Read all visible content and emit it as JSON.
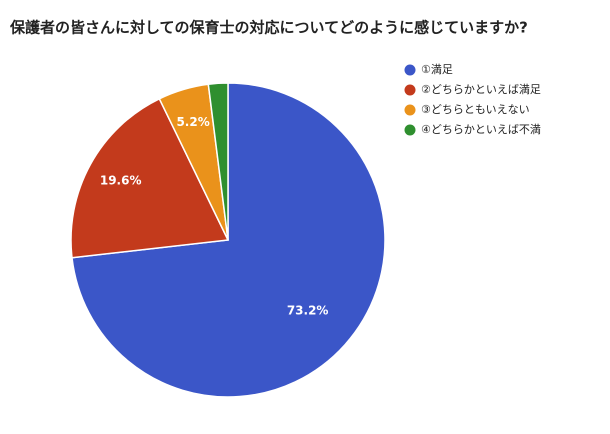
{
  "chart_data": {
    "type": "pie",
    "title": "保護者の皆さんに対しての保育士の対応についてどのように感じていますか?",
    "categories": [
      "①満足",
      "②どちらかといえば満足",
      "③どちらともいえない",
      "④どちらかといえば不満"
    ],
    "values": [
      73.2,
      19.6,
      5.2,
      2.0
    ],
    "value_labels": [
      "73.2%",
      "19.6%",
      "5.2%",
      null
    ],
    "colors": [
      "#3b56c8",
      "#c33a1c",
      "#ea921b",
      "#2f8f2f"
    ],
    "legend": "right"
  }
}
